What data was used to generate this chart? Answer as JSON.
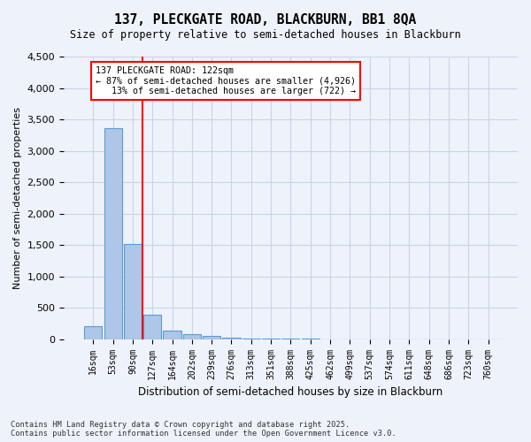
{
  "title1": "137, PLECKGATE ROAD, BLACKBURN, BB1 8QA",
  "title2": "Size of property relative to semi-detached houses in Blackburn",
  "xlabel": "Distribution of semi-detached houses by size in Blackburn",
  "ylabel": "Number of semi-detached properties",
  "bin_labels": [
    "16sqm",
    "53sqm",
    "90sqm",
    "127sqm",
    "164sqm",
    "202sqm",
    "239sqm",
    "276sqm",
    "313sqm",
    "351sqm",
    "388sqm",
    "425sqm",
    "462sqm",
    "499sqm",
    "537sqm",
    "574sqm",
    "611sqm",
    "648sqm",
    "686sqm",
    "723sqm",
    "760sqm"
  ],
  "bar_heights": [
    200,
    3360,
    1510,
    390,
    140,
    80,
    45,
    18,
    10,
    6,
    4,
    3,
    2,
    2,
    1,
    1,
    1,
    0,
    0,
    0,
    0
  ],
  "bar_color": "#aec6e8",
  "bar_edge_color": "#5b9bd5",
  "vline_color": "red",
  "annotation_text": "137 PLECKGATE ROAD: 122sqm\n← 87% of semi-detached houses are smaller (4,926)\n   13% of semi-detached houses are larger (722) →",
  "annotation_box_color": "white",
  "annotation_box_edge": "red",
  "ylim": [
    0,
    4500
  ],
  "yticks": [
    0,
    500,
    1000,
    1500,
    2000,
    2500,
    3000,
    3500,
    4000,
    4500
  ],
  "footnote": "Contains HM Land Registry data © Crown copyright and database right 2025.\nContains public sector information licensed under the Open Government Licence v3.0.",
  "bg_color": "#eef2fa",
  "grid_color": "#c8d4e8"
}
